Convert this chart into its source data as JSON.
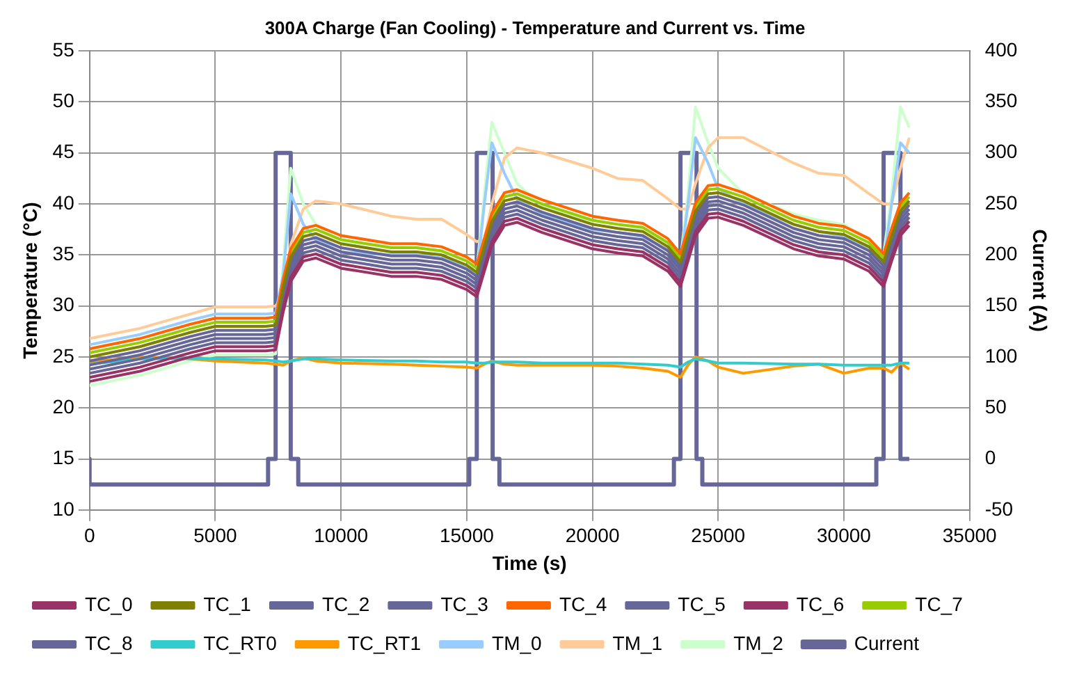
{
  "chart_data": {
    "type": "line",
    "title": "300A Charge (Fan Cooling) - Temperature and Current vs. Time",
    "xlabel": "Time (s)",
    "ylabel": "Temperature (°C)",
    "y2label": "Current (A)",
    "x": [
      0,
      2000,
      4000,
      5000,
      7000,
      7400,
      7700,
      8000,
      8500,
      9000,
      10000,
      12000,
      13000,
      14000,
      15000,
      15400,
      15700,
      16000,
      16500,
      17000,
      18000,
      20000,
      21000,
      22000,
      23000,
      23500,
      23800,
      24100,
      24600,
      25000,
      26000,
      28000,
      29000,
      30000,
      31000,
      31580,
      31900,
      32250,
      32600
    ],
    "xlim": [
      0,
      35000
    ],
    "xticks": [
      0,
      5000,
      10000,
      15000,
      20000,
      25000,
      30000,
      35000
    ],
    "ylim": [
      10,
      55
    ],
    "yticks": [
      10,
      15,
      20,
      25,
      30,
      35,
      40,
      45,
      50,
      55
    ],
    "y2lim": [
      -50,
      400
    ],
    "y2ticks": [
      -50,
      0,
      50,
      100,
      150,
      200,
      250,
      300,
      350,
      400
    ],
    "grid": true,
    "legend": "bottom",
    "marker": "none",
    "line_style": "solid",
    "series": [
      {
        "name": "TC_0",
        "color": "#993366",
        "values": [
          23,
          24,
          25.4,
          26,
          26,
          26.1,
          29.8,
          32.8,
          34.8,
          35.1,
          34.1,
          33.3,
          33.3,
          33,
          32,
          31.3,
          33.8,
          36.3,
          38.3,
          38.6,
          37.6,
          36,
          35.6,
          35.3,
          33.8,
          32.3,
          34.8,
          37.3,
          39,
          39.1,
          38.3,
          36,
          35.3,
          35,
          33.8,
          32.3,
          34.8,
          37.3,
          38.3
        ]
      },
      {
        "name": "TC_1",
        "color": "#808000",
        "values": [
          25,
          26,
          27.4,
          28,
          28,
          28.1,
          31.8,
          34.8,
          36.8,
          37.1,
          36.1,
          35.3,
          35.3,
          35,
          34,
          33.3,
          35.8,
          38.3,
          40.3,
          40.6,
          39.6,
          38,
          37.6,
          37.3,
          35.8,
          34.3,
          36.8,
          39.3,
          41,
          41.1,
          40.3,
          38,
          37.3,
          37,
          35.8,
          34.3,
          36.8,
          39.3,
          40.3
        ]
      },
      {
        "name": "TC_2",
        "color": "#666699",
        "values": [
          24.2,
          25.2,
          26.6,
          27.2,
          27.2,
          27.3,
          31,
          34,
          36,
          36.3,
          35.3,
          34.5,
          34.5,
          34.2,
          33.2,
          32.5,
          35,
          37.5,
          39.5,
          39.8,
          38.8,
          37.2,
          36.8,
          36.5,
          35,
          33.5,
          36,
          38.5,
          40.2,
          40.3,
          39.5,
          37.2,
          36.5,
          36.2,
          35,
          33.5,
          36,
          38.5,
          39.5
        ]
      },
      {
        "name": "TC_3",
        "color": "#666699",
        "values": [
          23.8,
          24.8,
          26.2,
          26.8,
          26.8,
          26.9,
          30.6,
          33.6,
          35.6,
          35.9,
          34.9,
          34.1,
          34.1,
          33.8,
          32.8,
          32.1,
          34.6,
          37.1,
          39.1,
          39.4,
          38.4,
          36.8,
          36.4,
          36.1,
          34.6,
          33.1,
          35.6,
          38.1,
          39.8,
          39.9,
          39.1,
          36.8,
          36.1,
          35.8,
          34.6,
          33.1,
          35.6,
          38.1,
          39.1
        ]
      },
      {
        "name": "TC_4",
        "color": "#ff6600",
        "values": [
          25.8,
          26.8,
          28.2,
          28.8,
          28.8,
          28.9,
          32.6,
          35.6,
          37.6,
          37.9,
          36.9,
          36.1,
          36.1,
          35.8,
          34.8,
          34.1,
          36.6,
          39.1,
          41.1,
          41.4,
          40.4,
          38.8,
          38.4,
          38.1,
          36.6,
          35.1,
          37.6,
          40.1,
          41.8,
          41.9,
          41.1,
          38.8,
          38.1,
          37.8,
          36.6,
          35.1,
          37.6,
          40.1,
          41.1
        ]
      },
      {
        "name": "TC_5",
        "color": "#666699",
        "values": [
          24.6,
          25.6,
          27,
          27.6,
          27.6,
          27.7,
          31.4,
          34.4,
          36.4,
          36.7,
          35.7,
          34.9,
          34.9,
          34.6,
          33.6,
          32.9,
          35.4,
          37.9,
          39.9,
          40.2,
          39.2,
          37.6,
          37.2,
          36.9,
          35.4,
          33.9,
          36.4,
          38.9,
          40.6,
          40.7,
          39.9,
          37.6,
          36.9,
          36.6,
          35.4,
          33.9,
          36.4,
          38.9,
          39.9
        ]
      },
      {
        "name": "TC_6",
        "color": "#993366",
        "values": [
          22.6,
          23.6,
          25,
          25.6,
          25.6,
          25.7,
          29.4,
          32.4,
          34.4,
          34.7,
          33.7,
          32.9,
          32.9,
          32.6,
          31.6,
          30.9,
          33.4,
          35.9,
          37.9,
          38.2,
          37.2,
          35.6,
          35.2,
          34.9,
          33.4,
          31.9,
          34.4,
          36.9,
          38.6,
          38.7,
          37.9,
          35.6,
          34.9,
          34.6,
          33.4,
          31.9,
          34.4,
          36.9,
          37.9
        ]
      },
      {
        "name": "TC_7",
        "color": "#99cc00",
        "values": [
          25.4,
          26.4,
          27.8,
          28.4,
          28.4,
          28.5,
          32.2,
          35.2,
          37.2,
          37.5,
          36.5,
          35.7,
          35.7,
          35.4,
          34.4,
          33.7,
          36.2,
          38.7,
          40.7,
          41,
          40,
          38.4,
          38,
          37.7,
          36.2,
          34.7,
          37.2,
          39.7,
          41.4,
          41.5,
          40.7,
          38.4,
          37.7,
          37.4,
          36.2,
          34.7,
          37.2,
          39.7,
          40.7
        ]
      },
      {
        "name": "TC_8",
        "color": "#666699",
        "values": [
          23.4,
          24.4,
          25.8,
          26.4,
          26.4,
          26.5,
          30.2,
          33.2,
          35.2,
          35.5,
          34.5,
          33.7,
          33.7,
          33.4,
          32.4,
          31.7,
          34.2,
          36.7,
          38.7,
          39,
          38,
          36.4,
          36,
          35.7,
          34.2,
          32.7,
          35.2,
          37.7,
          39.4,
          39.5,
          38.7,
          36.4,
          35.7,
          35.4,
          34.2,
          32.7,
          35.2,
          37.7,
          38.7
        ]
      },
      {
        "name": "TC_RT0",
        "color": "#33cccc",
        "values": [
          24.3,
          24.8,
          24.9,
          24.8,
          24.7,
          24.6,
          24.5,
          24.6,
          24.8,
          24.8,
          24.7,
          24.6,
          24.6,
          24.5,
          24.5,
          24.4,
          24.4,
          24.5,
          24.5,
          24.5,
          24.4,
          24.4,
          24.4,
          24.3,
          24.2,
          24,
          24.5,
          24.8,
          24.6,
          24.4,
          24.4,
          24.3,
          24.3,
          24.2,
          24.2,
          24.2,
          24.2,
          24.4,
          24.4
        ]
      },
      {
        "name": "TC_RT1",
        "color": "#ff9900",
        "values": [
          24.5,
          25,
          24.8,
          24.6,
          24.4,
          24.3,
          24.2,
          24.6,
          24.9,
          24.6,
          24.4,
          24.3,
          24.2,
          24.1,
          24,
          23.9,
          24.3,
          24.6,
          24.3,
          24.2,
          24.2,
          24.2,
          24.1,
          23.9,
          23.6,
          23,
          24.2,
          25,
          24.6,
          24,
          23.4,
          24.1,
          24.3,
          23.4,
          23.9,
          23.9,
          23.5,
          24.4,
          23.8
        ]
      },
      {
        "name": "TM_0",
        "color": "#99ccff",
        "values": [
          26.2,
          27.2,
          28.6,
          29.2,
          29.2,
          29.3,
          33,
          41,
          38,
          36.5,
          35.3,
          35,
          35,
          34.7,
          33.8,
          33,
          40,
          46,
          43,
          40.5,
          39,
          37.5,
          37.2,
          36.8,
          35.5,
          34,
          40,
          46.5,
          44,
          41.5,
          40,
          38,
          37.3,
          36.8,
          35.5,
          34.2,
          40,
          46,
          45
        ]
      },
      {
        "name": "TM_1",
        "color": "#ffcc99",
        "values": [
          26.8,
          27.8,
          29.2,
          29.9,
          29.9,
          30,
          31,
          36,
          39.5,
          40.3,
          40,
          38.8,
          38.5,
          38.5,
          37,
          36.3,
          36.5,
          40,
          44.5,
          45.5,
          45,
          43.5,
          42.5,
          42.3,
          40.5,
          39.5,
          39.5,
          42,
          45.5,
          46.5,
          46.5,
          44,
          43,
          42.8,
          41,
          40,
          40,
          43.5,
          46.5
        ]
      },
      {
        "name": "TM_2",
        "color": "#ccffcc",
        "values": [
          22.2,
          23.2,
          24.6,
          25.2,
          25.2,
          25.3,
          34,
          43.5,
          40,
          38,
          36.3,
          35.8,
          35.7,
          35.3,
          34.5,
          33.5,
          41,
          48,
          45,
          42,
          39.8,
          38.3,
          38,
          37.5,
          36,
          34.5,
          41,
          49.5,
          46,
          43.5,
          41,
          39,
          38.4,
          38,
          36.5,
          35,
          41,
          49.5,
          47.5
        ]
      },
      {
        "name": "Current",
        "color": "#666699",
        "axis": "y2",
        "x": [
          0,
          0,
          7100,
          7100,
          7400,
          7400,
          8000,
          8000,
          8300,
          8300,
          15100,
          15100,
          15400,
          15400,
          16030,
          16030,
          16300,
          16300,
          23240,
          23240,
          23500,
          23500,
          24140,
          24140,
          24370,
          24370,
          31290,
          31290,
          31580,
          31580,
          32250,
          32250,
          32600
        ],
        "values": [
          0,
          -25,
          -25,
          0,
          0,
          300,
          300,
          0,
          0,
          -25,
          -25,
          0,
          0,
          300,
          300,
          0,
          0,
          -25,
          -25,
          0,
          0,
          300,
          300,
          0,
          0,
          -25,
          -25,
          0,
          0,
          300,
          300,
          0,
          0
        ]
      }
    ]
  }
}
